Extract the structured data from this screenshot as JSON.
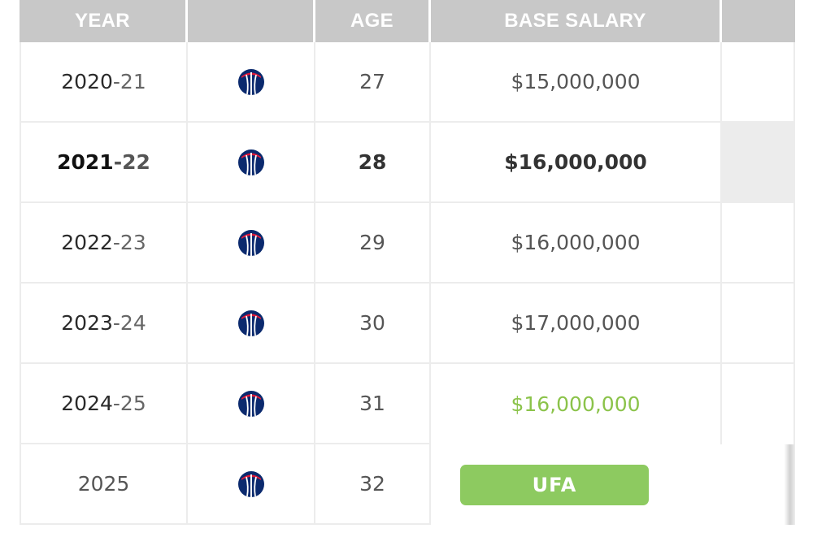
{
  "header": {
    "year": "YEAR",
    "team": "",
    "age": "AGE",
    "base_salary": "BASE SALARY",
    "extra": ""
  },
  "team_logo_icon": "wizards-logo-icon",
  "colors": {
    "header_bg": "#c8c8c8",
    "green": "#8bc34a",
    "ufa_bg": "#8dca60",
    "logo_navy": "#0b2a6e",
    "logo_red": "#e31837"
  },
  "rows": [
    {
      "year_start": "2020",
      "year_end": "-21",
      "age": "27",
      "salary": "$15,000,000"
    },
    {
      "year_start": "2021",
      "year_end": "-22",
      "age": "28",
      "salary": "$16,000,000"
    },
    {
      "year_start": "2022",
      "year_end": "-23",
      "age": "29",
      "salary": "$16,000,000"
    },
    {
      "year_start": "2023",
      "year_end": "-24",
      "age": "30",
      "salary": "$17,000,000"
    },
    {
      "year_start": "2024",
      "year_end": "-25",
      "age": "31",
      "salary": "$16,000,000"
    },
    {
      "year_start": "2025",
      "year_end": "",
      "age": "32",
      "salary": "UFA"
    }
  ]
}
